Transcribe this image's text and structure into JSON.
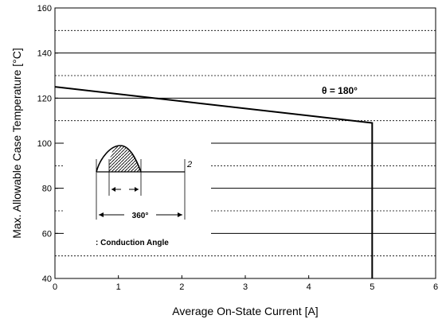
{
  "chart_data": {
    "type": "line",
    "xlabel": "Average On-State Current [A]",
    "ylabel": "Max. Allowable Case Temperature [°C]",
    "xlim": [
      0,
      6
    ],
    "ylim": [
      40,
      160
    ],
    "xticks": [
      "0",
      "1",
      "2",
      "3",
      "4",
      "5",
      "6"
    ],
    "yticks": [
      "40",
      "60",
      "80",
      "100",
      "120",
      "140",
      "160"
    ],
    "grid": "horizontal (solid major at labeled ticks, dashed minor between)",
    "series": [
      {
        "name": "θ = 180°",
        "points": [
          [
            0,
            125
          ],
          [
            5,
            109
          ],
          [
            5,
            40
          ]
        ],
        "color": "#000000"
      }
    ],
    "annotations": {
      "series_label": "θ = 180°",
      "inset_number": "2",
      "inset_angle": "360°",
      "inset_caption": ": Conduction Angle"
    }
  }
}
